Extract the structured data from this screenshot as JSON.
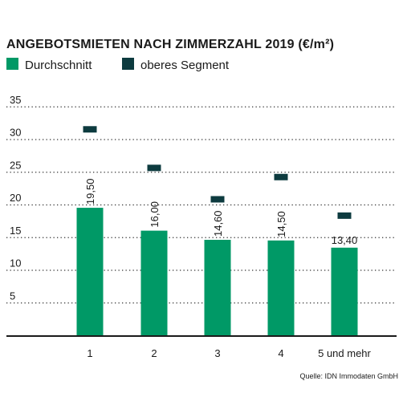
{
  "chart_data": {
    "type": "bar",
    "title": "ANGEBOTSMIETEN NACH ZIMMERZAHL 2019 (€/m²)",
    "categories": [
      "1",
      "2",
      "3",
      "4",
      "5 und mehr"
    ],
    "series": [
      {
        "name": "Durchschnitt",
        "color": "#009966",
        "values": [
          19.5,
          16.0,
          14.6,
          14.5,
          13.4
        ],
        "value_labels": [
          "19,50",
          "16,00",
          "14,60",
          "14,50",
          "13,40"
        ]
      },
      {
        "name": "oberes Segment",
        "color": "#0d3b3f",
        "values": [
          31.5,
          25.6,
          20.8,
          24.2,
          18.3
        ]
      }
    ],
    "yticks": [
      5,
      10,
      15,
      20,
      25,
      30,
      35
    ],
    "ylim": [
      0,
      37
    ],
    "grid": true,
    "legend_position": "top-left",
    "source": "Quelle: IDN Immodaten GmbH"
  }
}
